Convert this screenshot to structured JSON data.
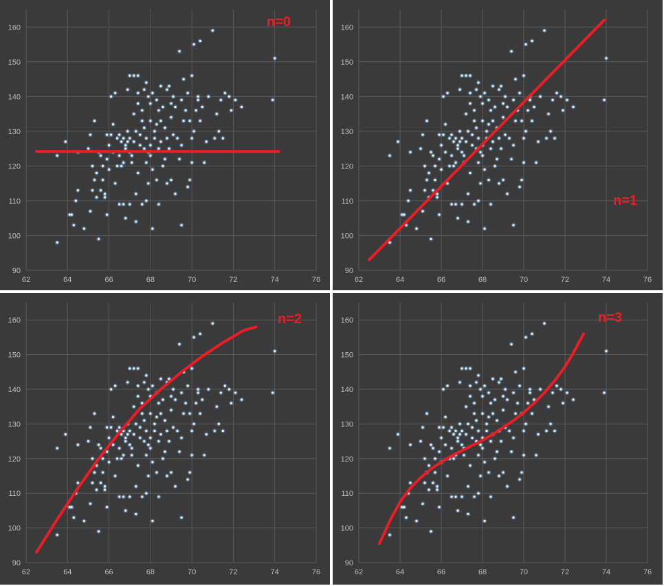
{
  "figure": {
    "background": "#3a3a3a",
    "gridline_color": "#5a5a5a",
    "tick_label_color": "#bdbdbd",
    "point_color": "#8cc8ff",
    "fit_line_color": "#ee1c25",
    "panel_label_color": "#ee1c25"
  },
  "scatter_points": [
    [
      63.5,
      98
    ],
    [
      63.5,
      123
    ],
    [
      63.9,
      127
    ],
    [
      64.1,
      106
    ],
    [
      64.2,
      106
    ],
    [
      64.3,
      103
    ],
    [
      64.4,
      110
    ],
    [
      64.5,
      113
    ],
    [
      64.5,
      124
    ],
    [
      64.8,
      102
    ],
    [
      65.0,
      125
    ],
    [
      65.1,
      129
    ],
    [
      65.1,
      107
    ],
    [
      65.2,
      113
    ],
    [
      65.2,
      120
    ],
    [
      65.3,
      116
    ],
    [
      65.3,
      133
    ],
    [
      65.4,
      111
    ],
    [
      65.4,
      118
    ],
    [
      65.5,
      124
    ],
    [
      65.5,
      99
    ],
    [
      65.6,
      113
    ],
    [
      65.6,
      123
    ],
    [
      65.7,
      116
    ],
    [
      65.7,
      120
    ],
    [
      65.8,
      111
    ],
    [
      65.8,
      112
    ],
    [
      65.9,
      106
    ],
    [
      65.9,
      122
    ],
    [
      65.9,
      129
    ],
    [
      66.0,
      126
    ],
    [
      66.0,
      119
    ],
    [
      66.1,
      140
    ],
    [
      66.1,
      129
    ],
    [
      66.2,
      124
    ],
    [
      66.2,
      132
    ],
    [
      66.3,
      115
    ],
    [
      66.3,
      141
    ],
    [
      66.4,
      128
    ],
    [
      66.4,
      120
    ],
    [
      66.5,
      109
    ],
    [
      66.5,
      129
    ],
    [
      66.5,
      123
    ],
    [
      66.6,
      120
    ],
    [
      66.6,
      127
    ],
    [
      66.7,
      121
    ],
    [
      66.7,
      128
    ],
    [
      66.7,
      109
    ],
    [
      66.8,
      126
    ],
    [
      66.8,
      125
    ],
    [
      66.8,
      105
    ],
    [
      66.9,
      142
    ],
    [
      66.9,
      127
    ],
    [
      66.9,
      130
    ],
    [
      67.0,
      146
    ],
    [
      67.0,
      124
    ],
    [
      67.0,
      128
    ],
    [
      67.0,
      109
    ],
    [
      67.1,
      123
    ],
    [
      67.1,
      121
    ],
    [
      67.2,
      135
    ],
    [
      67.2,
      146
    ],
    [
      67.2,
      127
    ],
    [
      67.3,
      104
    ],
    [
      67.3,
      130
    ],
    [
      67.3,
      112
    ],
    [
      67.4,
      138
    ],
    [
      67.4,
      141
    ],
    [
      67.4,
      146
    ],
    [
      67.4,
      118
    ],
    [
      67.5,
      126
    ],
    [
      67.5,
      129
    ],
    [
      67.6,
      109
    ],
    [
      67.6,
      133
    ],
    [
      67.6,
      136
    ],
    [
      67.7,
      142
    ],
    [
      67.7,
      125
    ],
    [
      67.7,
      131
    ],
    [
      67.8,
      144
    ],
    [
      67.8,
      121
    ],
    [
      67.8,
      128
    ],
    [
      67.8,
      110
    ],
    [
      67.9,
      124
    ],
    [
      67.9,
      140
    ],
    [
      67.9,
      115
    ],
    [
      68.0,
      123
    ],
    [
      68.0,
      133
    ],
    [
      68.0,
      138
    ],
    [
      68.0,
      126
    ],
    [
      68.1,
      141
    ],
    [
      68.1,
      119
    ],
    [
      68.1,
      102
    ],
    [
      68.2,
      128
    ],
    [
      68.2,
      130
    ],
    [
      68.3,
      139
    ],
    [
      68.3,
      116
    ],
    [
      68.3,
      132
    ],
    [
      68.4,
      125
    ],
    [
      68.4,
      136
    ],
    [
      68.4,
      109
    ],
    [
      68.5,
      133
    ],
    [
      68.5,
      127
    ],
    [
      68.5,
      143
    ],
    [
      68.6,
      137
    ],
    [
      68.6,
      120
    ],
    [
      68.7,
      131
    ],
    [
      68.7,
      122
    ],
    [
      68.8,
      142
    ],
    [
      68.8,
      128
    ],
    [
      68.8,
      115
    ],
    [
      68.9,
      143
    ],
    [
      68.9,
      125
    ],
    [
      69.0,
      138
    ],
    [
      69.0,
      134
    ],
    [
      69.0,
      116
    ],
    [
      69.1,
      140
    ],
    [
      69.1,
      129
    ],
    [
      69.2,
      112
    ],
    [
      69.2,
      137
    ],
    [
      69.3,
      128
    ],
    [
      69.4,
      153
    ],
    [
      69.4,
      122
    ],
    [
      69.5,
      139
    ],
    [
      69.5,
      126
    ],
    [
      69.5,
      103
    ],
    [
      69.6,
      145
    ],
    [
      69.6,
      133
    ],
    [
      69.7,
      136
    ],
    [
      69.8,
      141
    ],
    [
      69.8,
      114
    ],
    [
      69.9,
      133
    ],
    [
      69.9,
      116
    ],
    [
      70.0,
      128
    ],
    [
      70.0,
      146
    ],
    [
      70.0,
      121
    ],
    [
      70.1,
      155
    ],
    [
      70.1,
      130
    ],
    [
      70.2,
      136
    ],
    [
      70.3,
      139
    ],
    [
      70.3,
      140
    ],
    [
      70.4,
      156
    ],
    [
      70.4,
      133
    ],
    [
      70.5,
      137
    ],
    [
      70.6,
      121
    ],
    [
      70.7,
      127
    ],
    [
      70.8,
      140
    ],
    [
      71.0,
      159
    ],
    [
      71.1,
      128
    ],
    [
      71.2,
      135
    ],
    [
      71.3,
      130
    ],
    [
      71.4,
      139
    ],
    [
      71.5,
      128
    ],
    [
      71.6,
      141
    ],
    [
      71.8,
      140
    ],
    [
      71.9,
      136
    ],
    [
      72.1,
      139
    ],
    [
      72.4,
      137
    ],
    [
      73.9,
      139
    ],
    [
      74.0,
      151
    ]
  ],
  "chart_data": [
    {
      "type": "scatter",
      "panel_label": "n=0",
      "xlim": [
        62,
        76
      ],
      "ylim": [
        90,
        165
      ],
      "xticks": [
        "62",
        "64",
        "66",
        "68",
        "70",
        "72",
        "74",
        "76"
      ],
      "yticks": [
        "90",
        "100",
        "110",
        "120",
        "130",
        "140",
        "150",
        "160"
      ],
      "fit_degree": 0,
      "fit_curve": {
        "x": [
          62.5,
          74.2
        ],
        "y": [
          124.2,
          124.2
        ]
      }
    },
    {
      "type": "scatter",
      "panel_label": "n=1",
      "xlim": [
        62,
        76
      ],
      "ylim": [
        90,
        165
      ],
      "xticks": [
        "62",
        "64",
        "66",
        "68",
        "70",
        "72",
        "74",
        "76"
      ],
      "yticks": [
        "90",
        "100",
        "110",
        "120",
        "130",
        "140",
        "150",
        "160"
      ],
      "fit_degree": 1,
      "fit_curve": {
        "x": [
          62.5,
          73.9
        ],
        "y": [
          93,
          162
        ]
      }
    },
    {
      "type": "scatter",
      "panel_label": "n=2",
      "xlim": [
        62,
        76
      ],
      "ylim": [
        90,
        165
      ],
      "xticks": [
        "62",
        "64",
        "66",
        "68",
        "70",
        "72",
        "74",
        "76"
      ],
      "yticks": [
        "90",
        "100",
        "110",
        "120",
        "130",
        "140",
        "150",
        "160"
      ],
      "fit_degree": 2,
      "fit_curve": {
        "x": [
          62.5,
          63.5,
          64.5,
          65.5,
          66.5,
          67.5,
          68.5,
          69.5,
          70.5,
          71.5,
          72.5,
          73.1
        ],
        "y": [
          93,
          102.5,
          111.5,
          120,
          127.5,
          134.5,
          140,
          145,
          149.5,
          153.5,
          157,
          158
        ]
      }
    },
    {
      "type": "scatter",
      "panel_label": "n=3",
      "xlim": [
        62,
        76
      ],
      "ylim": [
        90,
        165
      ],
      "xticks": [
        "62",
        "64",
        "66",
        "68",
        "70",
        "72",
        "74",
        "76"
      ],
      "yticks": [
        "90",
        "100",
        "110",
        "120",
        "130",
        "140",
        "150",
        "160"
      ],
      "fit_degree": 3,
      "fit_curve": {
        "x": [
          63.0,
          63.5,
          64.0,
          64.5,
          65.0,
          65.5,
          66.0,
          66.5,
          67.0,
          67.5,
          68.0,
          68.5,
          69.0,
          69.5,
          70.0,
          70.5,
          71.0,
          71.5,
          72.0,
          72.4,
          72.9
        ],
        "y": [
          95.5,
          102,
          107.5,
          111.5,
          114.5,
          117,
          119,
          120.8,
          122.3,
          123.8,
          125.3,
          127,
          129,
          131,
          133.3,
          136,
          139,
          142.5,
          146.5,
          150.5,
          156
        ]
      }
    }
  ]
}
